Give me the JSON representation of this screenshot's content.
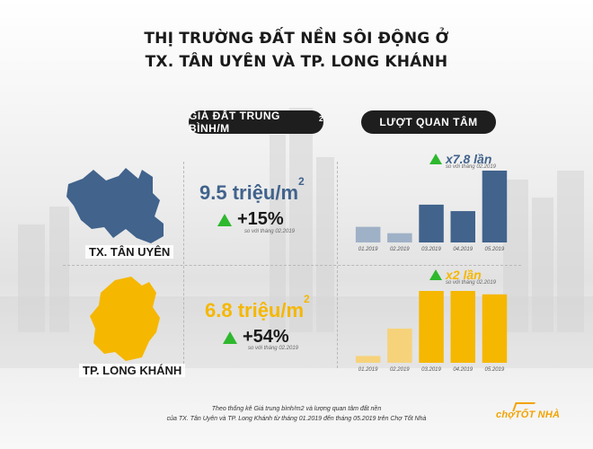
{
  "title_line1": "THỊ TRƯỜNG ĐẤT NỀN SÔI ĐỘNG Ở",
  "title_line2": "TX. TÂN UYÊN VÀ TP. LONG KHÁNH",
  "headers": {
    "price": "GIÁ ĐẤT TRUNG BÌNH/M",
    "price_sup": "2",
    "views": "LƯỢT QUAN TÂM"
  },
  "colors": {
    "tan_uyen": "#41638c",
    "long_khanh": "#f5b700",
    "muted_blue": "#9fb1c7",
    "muted_yellow": "#f6d27a",
    "accent_up": "#2eb82e"
  },
  "regions": [
    {
      "name": "TX. TÂN UYÊN",
      "price_value": "9.5 triệu/m",
      "price_sup": "2",
      "price_change": "+15%",
      "price_note": "so với tháng 02.2019",
      "views_growth": "x7.8 lần",
      "views_note": "so với tháng 02.2019"
    },
    {
      "name": "TP. LONG KHÁNH",
      "price_value": "6.8 triệu/m",
      "price_sup": "2",
      "price_change": "+54%",
      "price_note": "so với tháng 02.2019",
      "views_growth": "x2 lần",
      "views_note": "so với tháng 02.2019"
    }
  ],
  "chart_data": [
    {
      "type": "bar",
      "title": "",
      "categories": [
        "01.2019",
        "02.2019",
        "03.2019",
        "04.2019",
        "05.2019"
      ],
      "series": [
        {
          "values": [
            1.7,
            1,
            4.1,
            3.4,
            7.8
          ]
        }
      ],
      "xlabel": "",
      "ylabel": "",
      "highlight_from_index": 2,
      "grid": false
    },
    {
      "type": "bar",
      "title": "",
      "categories": [
        "01.2019",
        "02.2019",
        "03.2019",
        "04.2019",
        "05.2019"
      ],
      "series": [
        {
          "values": [
            0.2,
            1,
            2.1,
            2.1,
            2
          ]
        }
      ],
      "xlabel": "",
      "ylabel": "",
      "highlight_from_index": 2,
      "grid": false
    }
  ],
  "footer_line1": "Theo thống kê Giá trung bình/m2 và lượng quan tâm đất nền",
  "footer_line2": "của TX. Tân Uyên và TP. Long Khánh từ tháng 01.2019 đến tháng 05.2019 trên Chợ Tốt Nhà",
  "logo_text": "chợTỐT NHÀ"
}
